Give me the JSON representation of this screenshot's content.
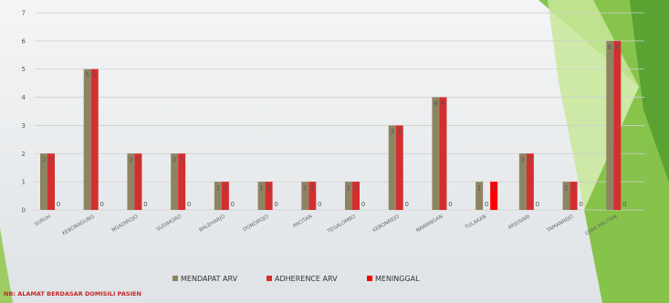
{
  "footnote": "NB: ALAMAT BERDASAR DOMISILI PASIEN",
  "colors": {
    "mendapat_arv": "#8f8462",
    "adherence_arv": "#d32f2f",
    "meninggal": "#ff0000",
    "accent_green": "#8cc63f"
  },
  "chart_data": {
    "type": "bar",
    "title": "",
    "xlabel": "",
    "ylabel": "",
    "ylim": [
      0,
      7
    ],
    "yticks": [
      0,
      1,
      2,
      3,
      4,
      5,
      6,
      7
    ],
    "grid": true,
    "legend_position": "bottom",
    "categories": [
      "SURUH",
      "KEBONAGUNG",
      "NGADIROJO",
      "SUDIMORO",
      "BALEHARJO",
      "DONOROJO",
      "PACITAN",
      "TEGALOMBO",
      "KEBONREJO",
      "NAWANGAN",
      "TULAKAN",
      "ARJOSARI",
      "TAMANREJO",
      "LUAR PACITAN"
    ],
    "series": [
      {
        "name": "MENDAPAT ARV",
        "values": [
          2,
          5,
          2,
          2,
          1,
          1,
          1,
          1,
          3,
          4,
          1,
          2,
          1,
          6
        ],
        "data_labels": [
          "2",
          "5",
          "2",
          "2",
          "1",
          "1",
          "1",
          "1",
          "3",
          "4",
          "1",
          "2",
          "1",
          "6"
        ]
      },
      {
        "name": "ADHERENCE ARV",
        "values": [
          2,
          5,
          2,
          2,
          1,
          1,
          1,
          1,
          3,
          4,
          0,
          2,
          1,
          6
        ],
        "data_labels": [
          "2",
          "5",
          "2",
          "2",
          "1",
          "1",
          "1",
          "1",
          "3",
          "4",
          "0",
          "2",
          "1",
          "6"
        ]
      },
      {
        "name": "MENINGGAL",
        "values": [
          0,
          0,
          0,
          0,
          0,
          0,
          0,
          0,
          0,
          0,
          1,
          0,
          0,
          0
        ],
        "data_labels": [
          "0",
          "0",
          "0",
          "0",
          "0",
          "0",
          "0",
          "0",
          "0",
          "0",
          "1",
          "0",
          "0",
          "0"
        ]
      }
    ]
  }
}
